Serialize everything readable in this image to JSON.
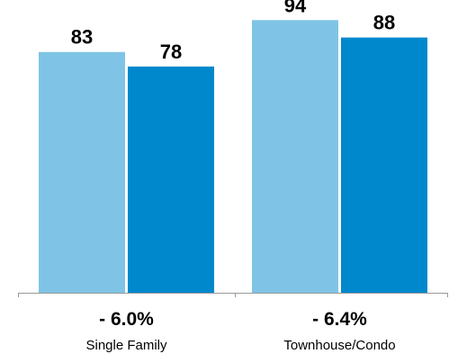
{
  "chart_data": {
    "type": "bar",
    "categories": [
      "Single Family",
      "Townhouse/Condo"
    ],
    "series": [
      {
        "color": "#7fc4e6",
        "values": [
          83,
          94
        ]
      },
      {
        "color": "#0088cc",
        "values": [
          78,
          88
        ]
      }
    ],
    "category_changes": [
      "- 6.0%",
      "- 6.4%"
    ],
    "ylim": [
      0,
      100
    ],
    "grid": false,
    "legend": false,
    "axis_color": "#999999"
  }
}
